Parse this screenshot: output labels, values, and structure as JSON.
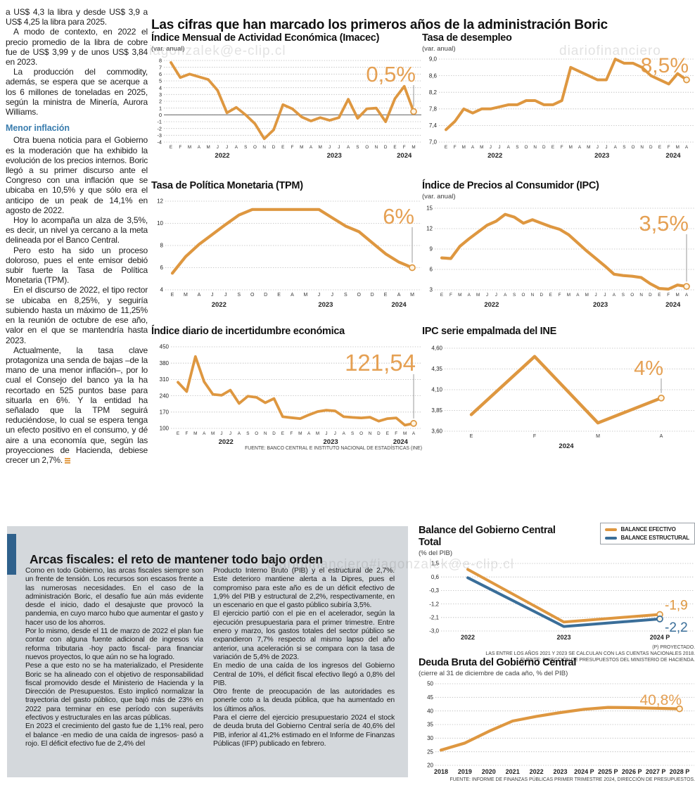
{
  "headline": "Las cifras que han marcado los primeros años de la administración Boric",
  "colors": {
    "accent_orange": "#DE9740",
    "accent_blue": "#3A6E99",
    "annotation_orange": "#E5A053",
    "subhead_blue": "#3A7DAE",
    "fiscal_box_gray": "#D4D8DC",
    "fiscal_bar_blue": "#2F618C"
  },
  "watermarks": {
    "top_left": "iagonzalek@e-clip.cl",
    "top_right": "diariofinanciero",
    "bottom": "diariofinanciero#iagonzalek@e-clip.cl"
  },
  "left_article": {
    "paragraphs": [
      "a US$ 4,3 la libra y desde US$ 3,9 a US$ 4,25 la libra para 2025.",
      "A modo de contexto, en 2022 el precio promedio de la libra de cobre fue de US$ 3,99 y de unos US$ 3,84 en 2023.",
      "La producción del commodity, además, se espera que se acerque a los 6 millones de toneladas en 2025, según la ministra de Minería, Aurora Williams.",
      "Otra buena noticia para el Gobierno es la moderación que ha exhibido la evolución de los precios internos. Boric llegó a su primer discurso ante el Congreso con una inflación que se ubicaba en 10,5% y que sólo era el anticipo de un peak de 14,1% en agosto de 2022.",
      "Hoy lo acompaña un alza de 3,5%, es decir, un nivel ya cercano a la meta delineada por el Banco Central.",
      "Pero esto ha sido un proceso doloroso, pues el ente emisor debió subir fuerte la Tasa de Política Monetaria (TPM).",
      "En el discurso de 2022, el tipo rector se ubicaba en 8,25%, y seguiría subiendo hasta un máximo de 11,25% en la reunión de octubre de ese año, valor en el que se mantendría hasta 2023.",
      "Actualmente, la tasa clave protagoniza una senda de bajas –de la mano de una menor inflación–, por lo cual el Consejo del banco ya la ha recortado en 525 puntos base para situarla en 6%. Y la entidad ha señalado que la TPM seguirá reduciéndose, lo cual se espera tenga un efecto positivo en el consumo, y dé aire a una economía que, según las proyecciones de Hacienda, debiese crecer un 2,7%."
    ],
    "subhead": "Menor inflación"
  },
  "charts": {
    "imacec": {
      "type": "line",
      "title": "Índice Mensual de Actividad Económica (Imacec)",
      "subtitle": "(var. anual)",
      "ylim": [
        -4,
        8
      ],
      "y_ticks": [
        {
          "v": 8,
          "t": "8"
        },
        {
          "v": 7,
          "t": "7"
        },
        {
          "v": 6,
          "t": "6"
        },
        {
          "v": 5,
          "t": "5"
        },
        {
          "v": 4,
          "t": "4"
        },
        {
          "v": 3,
          "t": "3"
        },
        {
          "v": 2,
          "t": "2"
        },
        {
          "v": 1,
          "t": "1"
        },
        {
          "v": 0,
          "t": "0"
        },
        {
          "v": -1,
          "t": "-1"
        },
        {
          "v": -2,
          "t": "-2"
        },
        {
          "v": -3,
          "t": "-3"
        },
        {
          "v": -4,
          "t": "-4"
        }
      ],
      "zero_line": true,
      "x_groups": [
        {
          "label": "2022",
          "ticks": [
            "E",
            "F",
            "M",
            "A",
            "M",
            "J",
            "J",
            "A",
            "S",
            "O",
            "N",
            "D"
          ]
        },
        {
          "label": "2023",
          "ticks": [
            "E",
            "F",
            "M",
            "A",
            "M",
            "J",
            "J",
            "A",
            "S",
            "O",
            "N",
            "D"
          ]
        },
        {
          "label": "2024",
          "ticks": [
            "E",
            "F",
            "M"
          ]
        }
      ],
      "series": [
        {
          "name": "Imacec var. anual",
          "color": "#DE9740",
          "end_circle": true,
          "values": [
            7.7,
            5.5,
            6.0,
            5.6,
            5.2,
            3.6,
            0.3,
            1.1,
            0.0,
            -1.3,
            -3.5,
            -2.2,
            1.5,
            0.9,
            -0.3,
            -0.9,
            -0.4,
            -0.8,
            -0.4,
            2.3,
            -0.5,
            0.9,
            1.0,
            -1.0,
            2.4,
            4.2,
            0.5
          ]
        }
      ],
      "annotation": {
        "text": "0,5%"
      }
    },
    "desempleo": {
      "type": "line",
      "title": "Tasa de desempleo",
      "subtitle": "(var. anual)",
      "ylim": [
        7.0,
        9.0
      ],
      "y_ticks": [
        {
          "v": 9.0,
          "t": "9,0"
        },
        {
          "v": 8.6,
          "t": "8,6"
        },
        {
          "v": 8.2,
          "t": "8,2"
        },
        {
          "v": 7.8,
          "t": "7,8"
        },
        {
          "v": 7.4,
          "t": "7,4"
        },
        {
          "v": 7.0,
          "t": "7,0"
        }
      ],
      "x_groups": [
        {
          "label": "2022",
          "ticks": [
            "E",
            "F",
            "M",
            "A",
            "M",
            "J",
            "J",
            "A",
            "S",
            "O",
            "N",
            "D"
          ]
        },
        {
          "label": "2023",
          "ticks": [
            "E",
            "F",
            "M",
            "A",
            "M",
            "J",
            "J",
            "A",
            "S",
            "O",
            "N",
            "D"
          ]
        },
        {
          "label": "2024",
          "ticks": [
            "E",
            "F",
            "M",
            "A"
          ]
        }
      ],
      "series": [
        {
          "name": "Tasa de desempleo",
          "color": "#DE9740",
          "end_circle": true,
          "values": [
            7.3,
            7.5,
            7.8,
            7.7,
            7.8,
            7.8,
            7.85,
            7.9,
            7.9,
            8.0,
            8.0,
            7.9,
            7.9,
            8.0,
            8.8,
            8.7,
            8.6,
            8.5,
            8.5,
            9.0,
            8.9,
            8.9,
            8.8,
            8.6,
            8.5,
            8.4,
            8.65,
            8.5
          ]
        }
      ],
      "annotation": {
        "text": "8,5%"
      }
    },
    "tpm": {
      "type": "line",
      "title": "Tasa de Política Monetaria (TPM)",
      "subtitle": "",
      "ylim": [
        4,
        12
      ],
      "y_ticks": [
        {
          "v": 12,
          "t": "12"
        },
        {
          "v": 10,
          "t": "10"
        },
        {
          "v": 8,
          "t": "8"
        },
        {
          "v": 6,
          "t": "6"
        },
        {
          "v": 4,
          "t": "4"
        }
      ],
      "x_groups": [
        {
          "label": "2022",
          "ticks": [
            "E",
            "M",
            "A",
            "J",
            "J",
            "S",
            "O",
            "D"
          ]
        },
        {
          "label": "2023",
          "ticks": [
            "E",
            "A",
            "M",
            "J",
            "J",
            "S",
            "O",
            "D"
          ]
        },
        {
          "label": "2024",
          "ticks": [
            "E",
            "A",
            "M"
          ]
        }
      ],
      "series": [
        {
          "name": "TPM",
          "color": "#DE9740",
          "end_circle": true,
          "values": [
            5.5,
            7.0,
            8.1,
            9.0,
            9.9,
            10.75,
            11.25,
            11.25,
            11.25,
            11.25,
            11.25,
            11.25,
            10.5,
            9.75,
            9.25,
            8.25,
            7.25,
            6.5,
            6.0
          ]
        }
      ],
      "annotation": {
        "text": "6%"
      }
    },
    "ipc": {
      "type": "line",
      "title": "Índice de Precios al Consumidor (IPC)",
      "subtitle": "(var. anual)",
      "ylim": [
        3,
        15
      ],
      "y_ticks": [
        {
          "v": 15,
          "t": "15"
        },
        {
          "v": 12,
          "t": "12"
        },
        {
          "v": 9,
          "t": "9"
        },
        {
          "v": 6,
          "t": "6"
        },
        {
          "v": 3,
          "t": "3"
        }
      ],
      "x_groups": [
        {
          "label": "2022",
          "ticks": [
            "E",
            "F",
            "M",
            "A",
            "M",
            "J",
            "J",
            "A",
            "S",
            "O",
            "N",
            "D"
          ]
        },
        {
          "label": "2023",
          "ticks": [
            "E",
            "F",
            "M",
            "A",
            "M",
            "J",
            "J",
            "A",
            "S",
            "O",
            "N",
            "D"
          ]
        },
        {
          "label": "2024",
          "ticks": [
            "E",
            "F",
            "M",
            "A"
          ]
        }
      ],
      "series": [
        {
          "name": "IPC var. anual",
          "color": "#DE9740",
          "end_circle": true,
          "values": [
            7.7,
            7.6,
            9.4,
            10.5,
            11.5,
            12.5,
            13.1,
            14.1,
            13.7,
            12.8,
            13.3,
            12.8,
            12.3,
            11.9,
            11.1,
            9.9,
            8.7,
            7.6,
            6.5,
            5.3,
            5.1,
            5.0,
            4.8,
            3.9,
            3.2,
            3.1,
            3.7,
            3.5
          ]
        }
      ],
      "annotation": {
        "text": "3,5%"
      }
    },
    "incertidumbre": {
      "type": "line",
      "title": "Índice diario de incertidumbre económica",
      "subtitle": "",
      "ylim": [
        100,
        450
      ],
      "y_ticks": [
        {
          "v": 450,
          "t": "450"
        },
        {
          "v": 380,
          "t": "380"
        },
        {
          "v": 310,
          "t": "310"
        },
        {
          "v": 240,
          "t": "240"
        },
        {
          "v": 170,
          "t": "170"
        },
        {
          "v": 100,
          "t": "100"
        }
      ],
      "x_groups": [
        {
          "label": "2022",
          "ticks": [
            "E",
            "F",
            "M",
            "A",
            "M",
            "J",
            "J",
            "A",
            "S",
            "O",
            "N",
            "D"
          ]
        },
        {
          "label": "2023",
          "ticks": [
            "E",
            "F",
            "M",
            "A",
            "M",
            "J",
            "J",
            "A",
            "S",
            "O",
            "N",
            "D"
          ]
        },
        {
          "label": "2024",
          "ticks": [
            "E",
            "F",
            "M",
            "A"
          ]
        }
      ],
      "series": [
        {
          "name": "Índice de incertidumbre",
          "color": "#DE9740",
          "end_circle": true,
          "values": [
            298,
            258,
            408,
            300,
            246,
            242,
            264,
            207,
            238,
            233,
            210,
            228,
            150,
            146,
            142,
            158,
            172,
            178,
            175,
            150,
            147,
            145,
            148,
            131,
            142,
            145,
            114,
            121.54
          ]
        }
      ],
      "annotation": {
        "text": "121,54"
      },
      "source": "FUENTE: BANCO CENTRAL E INSTITUTO NACIONAL DE ESTADÍSTICAS (INE)"
    },
    "empalmada": {
      "type": "line",
      "title": "IPC serie empalmada del INE",
      "subtitle": "",
      "ylim": [
        3.6,
        4.6
      ],
      "y_ticks": [
        {
          "v": 4.6,
          "t": "4,60"
        },
        {
          "v": 4.35,
          "t": "4,35"
        },
        {
          "v": 4.1,
          "t": "4,10"
        },
        {
          "v": 3.85,
          "t": "3,85"
        },
        {
          "v": 3.6,
          "t": "3,60"
        }
      ],
      "x_groups": [
        {
          "label": "2024",
          "ticks": [
            "E",
            "F",
            "M",
            "A"
          ]
        }
      ],
      "series": [
        {
          "name": "IPC serie empalmada",
          "color": "#DE9740",
          "end_circle": true,
          "values": [
            3.8,
            4.5,
            3.7,
            4.0
          ]
        }
      ],
      "annotation": {
        "text": "4%"
      }
    },
    "balance": {
      "type": "line",
      "title": "Balance del Gobierno Central Total",
      "subtitle": "(% del PIB)",
      "ylim": [
        -3.0,
        1.5
      ],
      "y_ticks": [
        {
          "v": 1.5,
          "t": "1,5"
        },
        {
          "v": 0.6,
          "t": "0,6"
        },
        {
          "v": -0.3,
          "t": "-0,3"
        },
        {
          "v": -1.2,
          "t": "-1,2"
        },
        {
          "v": -2.1,
          "t": "-2,1"
        },
        {
          "v": -3.0,
          "t": "-3,0"
        }
      ],
      "x_labels": [
        "2022",
        "2023",
        "2024 P"
      ],
      "legend": [
        {
          "label": "BALANCE EFECTIVO",
          "color": "#DE9740"
        },
        {
          "label": "BALANCE ESTRUCTURAL",
          "color": "#3A6E99"
        }
      ],
      "series": [
        {
          "name": "Balance efectivo",
          "color": "#DE9740",
          "end_circle": true,
          "end_label": "-1,9",
          "label_dy": -7,
          "values": [
            1.1,
            -2.4,
            -1.9
          ]
        },
        {
          "name": "Balance estructural",
          "color": "#3A6E99",
          "end_circle": true,
          "end_label": "-2,2",
          "label_dy": 18,
          "values": [
            0.55,
            -2.7,
            -2.2
          ]
        }
      ],
      "footnotes": [
        "(P) PROYECTADO.",
        "LAS ENTRE LOS AÑOS 2021 Y 2023 SE CALCULAN  CON LAS CUENTAS NACIONALES 2018.",
        "FUENTE: DIRECCIÓN DE PRESUPUESTOS DEL MINISTERIO DE HACIENDA."
      ]
    },
    "deuda": {
      "type": "line",
      "title": "Deuda Bruta del Gobierno Central",
      "subtitle": "(cierre al 31 de diciembre de cada año, % del PIB)",
      "ylim": [
        20,
        50
      ],
      "y_ticks": [
        {
          "v": 50,
          "t": "50"
        },
        {
          "v": 45,
          "t": "45"
        },
        {
          "v": 40,
          "t": "40"
        },
        {
          "v": 35,
          "t": "35"
        },
        {
          "v": 30,
          "t": "30"
        },
        {
          "v": 25,
          "t": "25"
        },
        {
          "v": 20,
          "t": "20"
        }
      ],
      "x_labels": [
        "2018",
        "2019",
        "2020",
        "2021",
        "2022",
        "2023",
        "2024 P",
        "2025 P",
        "2026 P",
        "2027 P",
        "2028 P"
      ],
      "series": [
        {
          "name": "Deuda bruta (% del PIB)",
          "color": "#DE9740",
          "end_circle": true,
          "values": [
            25.6,
            28.2,
            32.5,
            36.3,
            38.0,
            39.4,
            40.6,
            41.3,
            41.2,
            41.0,
            40.8
          ]
        }
      ],
      "annotation": {
        "text": "40,8%",
        "connector": false
      },
      "source": "FUENTE: INFORME DE FINANZAS PÚBLICAS PRIMER TRIMESTRE 2024, DIRECCIÓN DE PRESUPUESTOS."
    }
  },
  "fiscal": {
    "title": "Arcas fiscales: el reto de mantener todo bajo orden",
    "col1": [
      "Como en todo Gobierno, las arcas fiscales siempre son un frente de tensión. Los recursos son escasos frente a las numerosas necesidades. En el caso de la administración Boric, el desafío fue aún más evidente desde el inicio, dado el desajuste que provocó la pandemia, en cuyo marco hubo que aumentar el gasto y hacer uso de los ahorros.",
      "Por lo mismo, desde el 11 de marzo de 2022 el plan fue contar con alguna fuente adicional de ingresos vía reforma tributaria -hoy pacto fiscal- para financiar nuevos proyectos, lo que aún no se ha logrado.",
      "Pese a que esto no se ha materializado, el Presidente Boric se ha alineado con el objetivo de responsabilidad fiscal promovido desde el Ministerio de Hacienda y la Dirección de Presupuestos. Esto implicó normalizar la trayectoria del gasto público, que bajó más de 23% en 2022 para terminar en ese período con superávits efectivos y estructurales en las arcas públicas.",
      "En 2023 el crecimiento del gasto fue de 1,1% real, pero el balance -en medio de una caída de ingresos-  pasó a rojo. El déficit efectivo fue de 2,4% del"
    ],
    "col2": [
      "Producto Interno Bruto (PIB) y el estructural de 2,7%. Este deterioro mantiene alerta a la Dipres, pues el compromiso para este año es de un déficit efectivo de 1,9% del PIB y estructural de 2,2%, respectivamente, en un escenario en que el gasto público subiría 3,5%.",
      "El ejercicio partió con el pie en el acelerador, según la ejecución presupuestaria para el primer trimestre. Entre enero y marzo, los gastos totales del sector público se expandieron 7,7% respecto al mismo lapso del año anterior, una aceleración si se compara con la tasa de variación de 5,4% de 2023.",
      "En medio de una caída de los ingresos del Gobierno Central de 10%, el déficit fiscal efectivo llegó a 0,8% del PIB.",
      "Otro frente de preocupación de las autoridades es ponerle coto a la deuda pública, que ha aumentado en los últimos años.",
      "Para el cierre del ejercicio presupuestario 2024 el stock de deuda bruta del Gobierno Central sería de 40,6% del PIB, inferior al 41,2% estimado en el Informe de Finanzas Públicas (IFP) publicado en febrero."
    ]
  }
}
